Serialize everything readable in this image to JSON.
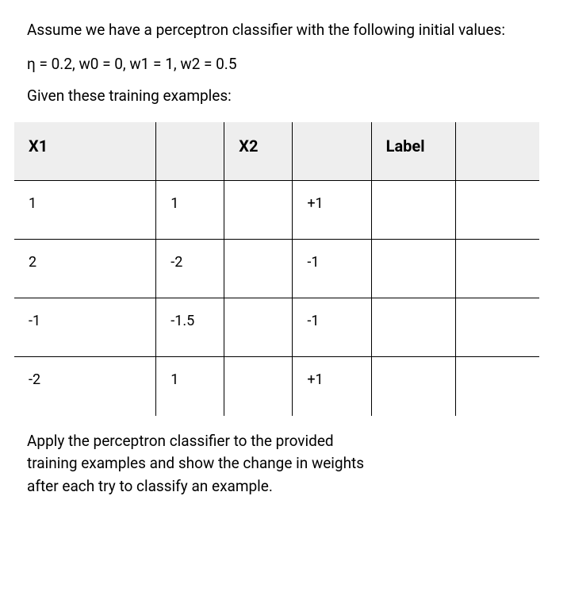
{
  "intro": "Assume we have a perceptron classifier with the following initial values:",
  "params": "η = 0.2, w0 = 0, w1 = 1, w2 = 0.5",
  "given": "Given these training examples:",
  "table": {
    "headers": {
      "x1": "X1",
      "x2": "X2",
      "label": "Label"
    },
    "rows": [
      {
        "x1": "1",
        "x2": "1",
        "label": "+1"
      },
      {
        "x1": "2",
        "x2": "-2",
        "label": "-1"
      },
      {
        "x1": "-1",
        "x2": "-1.5",
        "label": "-1"
      },
      {
        "x1": "-2",
        "x2": "1",
        "label": "+1"
      }
    ]
  },
  "apply": "Apply the perceptron classifier to the provided training examples and show the change in weights after each try to classify an example.",
  "style": {
    "background_color": "#ffffff",
    "text_color": "#000000",
    "header_bg": "#eeeeee",
    "border_color": "#000000",
    "font_size_body": 19,
    "font_size_cell": 18,
    "font_size_header": 20
  }
}
